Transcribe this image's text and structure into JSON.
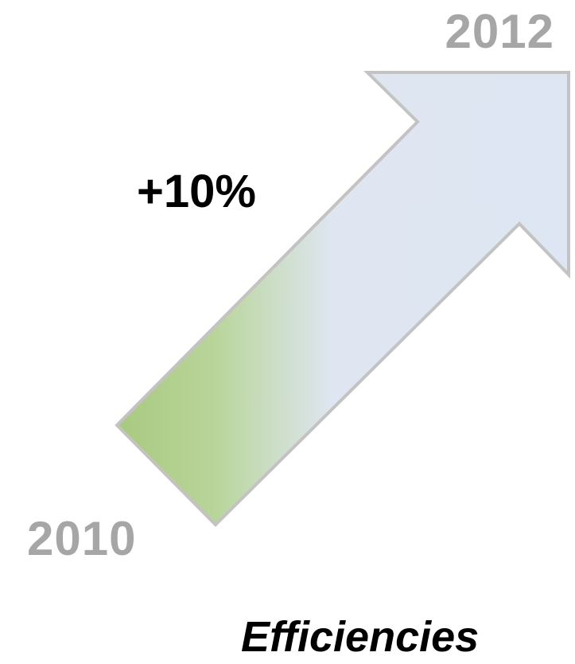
{
  "diagram": {
    "start_label": "2010",
    "end_label": "2012",
    "change_label": "+10%",
    "caption": "Efficiencies"
  },
  "colors": {
    "arrow_gradient_start": "#a9c97f",
    "arrow_gradient_end": "#dee6f3",
    "arrow_outline": "#c3c3c3",
    "year_text": "#a6a6a6",
    "main_text": "#000000"
  },
  "icons": {
    "arrow": "up-right-arrow-icon"
  }
}
